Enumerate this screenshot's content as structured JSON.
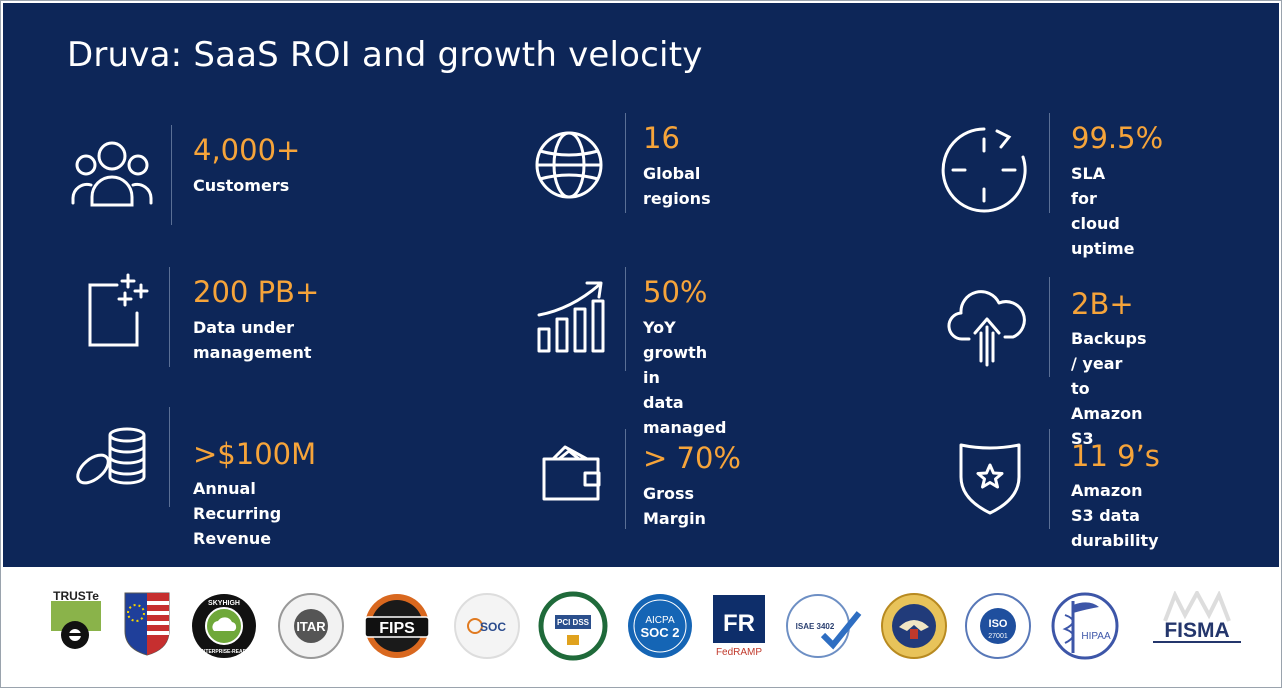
{
  "slide": {
    "title": "Druva: SaaS ROI and growth velocity"
  },
  "stats": [
    {
      "icon": "users-group-icon",
      "value": "4,000+",
      "label": "Customers"
    },
    {
      "icon": "globe-icon",
      "value": "16",
      "label": "Global regions"
    },
    {
      "icon": "clock-refresh-icon",
      "value": "99.5%",
      "label": "SLA for cloud\nuptime"
    },
    {
      "icon": "document-sparkle-icon",
      "value": "200 PB+",
      "label": "Data under\nmanagement"
    },
    {
      "icon": "growth-chart-icon",
      "value": "50%",
      "label": "YoY growth in\ndata managed"
    },
    {
      "icon": "cloud-upload-icon",
      "value": "2B+",
      "label": "Backups / year\nto Amazon S3"
    },
    {
      "icon": "coin-stack-icon",
      "value": ">$100M",
      "label": "Annual Recurring\nRevenue"
    },
    {
      "icon": "wallet-icon",
      "value": "> 70%",
      "label": "Gross Margin"
    },
    {
      "icon": "shield-star-icon",
      "value": "11 9’s",
      "label": "Amazon S3 data\ndurability"
    }
  ],
  "badges": {
    "truste": "TRUSTe",
    "skyhigh": "SKYHIGH",
    "skyhigh_sub": "ENTERPRISE-READY",
    "itar": "ITAR",
    "fips": "FIPS",
    "soc": "SOC",
    "pci": "PCI DSS",
    "aicpa": "AICPA",
    "soc2": "SOC 2",
    "fedramp_mark": "FR",
    "fedramp": "FedRAMP",
    "isae": "ISAE 3402",
    "iso": "ISO",
    "iso_num": "27001",
    "hipaa": "HIPAA",
    "fisma": "FISMA"
  },
  "colors": {
    "panel_bg": "#0d2658",
    "accent": "#f6a43a",
    "divider": "#5a6f95"
  }
}
